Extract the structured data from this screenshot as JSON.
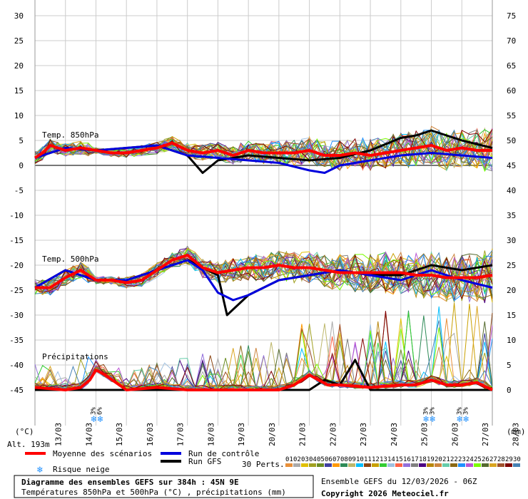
{
  "chart_data": {
    "type": "line",
    "title": "Diagramme des ensembles GEFS sur 384h : 45N 9E",
    "subtitle": "Températures 850hPa et 500hPa (°C) , précipitations (mm)",
    "source": "Ensemble GEFS du 12/03/2026 - 06Z",
    "copyright": "Copyright 2026 Meteociel.fr",
    "left_axis": {
      "unit": "(°C)",
      "min": -45,
      "max": 30,
      "ticks": [
        30,
        25,
        20,
        15,
        10,
        5,
        0,
        -5,
        -10,
        -15,
        -20,
        -25,
        -30,
        -35,
        -40,
        -45
      ]
    },
    "right_axis": {
      "unit": "(mm)",
      "min": 0,
      "max": 75,
      "ticks": [
        75,
        70,
        65,
        60,
        55,
        50,
        45,
        40,
        35,
        30,
        25,
        20,
        15,
        10,
        5,
        0
      ]
    },
    "altitude": "Alt. 193m",
    "dates": [
      "13/03",
      "14/03",
      "15/03",
      "16/03",
      "17/03",
      "18/03",
      "19/03",
      "20/03",
      "21/03",
      "22/03",
      "23/03",
      "24/03",
      "25/03",
      "26/03",
      "27/03",
      "28/03"
    ],
    "labels": {
      "t850": "Temp. 850hPa",
      "t500": "Temp. 500hPa",
      "precip": "Précipitations"
    },
    "legend": {
      "mean": "Moyenne des scénarios",
      "control": "Run de contrôle",
      "gfs": "Run GFS",
      "snow": "Risque neige",
      "perts_label": "30 Perts.",
      "perts": [
        "01",
        "02",
        "03",
        "04",
        "05",
        "06",
        "07",
        "08",
        "09",
        "10",
        "11",
        "12",
        "13",
        "14",
        "15",
        "16",
        "17",
        "18",
        "19",
        "20",
        "21",
        "22",
        "23",
        "24",
        "25",
        "26",
        "27",
        "28",
        "29",
        "30"
      ]
    },
    "snow_marks": [
      {
        "day": 2.0,
        "labels": [
          "3%",
          "6%"
        ]
      },
      {
        "day": 12.9,
        "labels": [
          "3%",
          "3%"
        ]
      },
      {
        "day": 14.0,
        "labels": [
          "3%",
          "3%"
        ]
      }
    ],
    "colors": {
      "mean": "#ff0000",
      "control": "#0000dd",
      "gfs": "#000000",
      "perts": [
        "#e8903a",
        "#aaaaaa",
        "#e0c000",
        "#a0a020",
        "#6b8e23",
        "#4040a0",
        "#ff9900",
        "#2e8b57",
        "#bdb76b",
        "#00bfff",
        "#8b4513",
        "#c8a000",
        "#32cd32",
        "#a0c0e0",
        "#ff6347",
        "#9370db",
        "#808080",
        "#4b0082",
        "#b8860b",
        "#cd853f",
        "#66cdaa",
        "#8b6914",
        "#1e90ff",
        "#ba55d3",
        "#7cfc00",
        "#556b2f",
        "#daa520",
        "#a0522d",
        "#800000",
        "#4682b4"
      ]
    },
    "series": [
      {
        "name": "Moyenne des scénarios",
        "var": "t850",
        "x": [
          0,
          0.25,
          0.5,
          0.75,
          1,
          1.5,
          2,
          2.5,
          3,
          3.5,
          4,
          4.5,
          5,
          5.5,
          6,
          6.5,
          7,
          7.5,
          8,
          8.5,
          9,
          9.5,
          10,
          10.5,
          11,
          11.5,
          12,
          12.5,
          13,
          13.5,
          14,
          14.5,
          15
        ],
        "y": [
          1.5,
          2.5,
          4,
          3.5,
          3,
          3.5,
          3,
          2.5,
          2.5,
          3,
          3.5,
          4.5,
          3,
          2.5,
          3,
          2,
          3,
          2.5,
          2.5,
          2.5,
          3,
          2,
          2,
          2.5,
          2,
          2.5,
          3,
          3.5,
          4,
          3,
          3.5,
          3,
          3
        ]
      },
      {
        "name": "Moyenne des scénarios",
        "var": "t500",
        "x": [
          0,
          0.5,
          1,
          1.5,
          2,
          2.5,
          3,
          3.5,
          4,
          4.5,
          5,
          5.5,
          6,
          6.5,
          7,
          7.5,
          8,
          8.5,
          9,
          9.5,
          10,
          10.5,
          11,
          11.5,
          12,
          12.5,
          13,
          13.5,
          14,
          14.5,
          15
        ],
        "y": [
          -24.5,
          -24.5,
          -22.5,
          -21,
          -23,
          -23,
          -23.5,
          -23,
          -21,
          -19,
          -18,
          -20.5,
          -21.5,
          -21,
          -20.5,
          -20.5,
          -20,
          -20.5,
          -20.5,
          -21,
          -21.5,
          -21.5,
          -21.5,
          -21.5,
          -21.5,
          -22,
          -22,
          -22.5,
          -22.5,
          -22.5,
          -22
        ]
      },
      {
        "name": "Moyenne des scénarios",
        "var": "precip",
        "x": [
          0,
          1,
          1.5,
          1.8,
          2,
          2.3,
          3,
          4,
          5,
          6,
          7,
          8,
          8.5,
          9,
          9.3,
          9.6,
          10,
          11,
          12,
          12.5,
          13,
          13.5,
          14,
          14.5,
          15
        ],
        "y": [
          0.5,
          0,
          0.5,
          2,
          4,
          3,
          0,
          0.5,
          0,
          0,
          0,
          0,
          1,
          3,
          2,
          1,
          1,
          0.5,
          1,
          1,
          2,
          1,
          1,
          1.5,
          0
        ]
      },
      {
        "name": "Run de contrôle",
        "var": "t850",
        "x": [
          0,
          1,
          2,
          3,
          4,
          5,
          6,
          7,
          8,
          9,
          9.5,
          10,
          11,
          12,
          13,
          14,
          15
        ],
        "y": [
          1.5,
          3.5,
          3,
          3.5,
          4,
          2,
          1.5,
          1,
          0.5,
          -1,
          -1.5,
          0,
          1,
          2,
          2.5,
          2,
          1.5
        ]
      },
      {
        "name": "Run de contrôle",
        "var": "t500",
        "x": [
          0,
          1,
          2,
          3,
          4,
          5,
          5.5,
          6,
          6.5,
          7,
          8,
          9,
          10,
          11,
          12,
          13,
          14,
          15
        ],
        "y": [
          -24.5,
          -21,
          -23,
          -23,
          -21,
          -19,
          -21,
          -25.5,
          -27,
          -26,
          -23,
          -22,
          -21,
          -22,
          -23,
          -21,
          -23,
          -24.5
        ]
      },
      {
        "name": "Run GFS",
        "var": "t850",
        "x": [
          0,
          1,
          2,
          3,
          4,
          5,
          5.5,
          6,
          7,
          8,
          9,
          10,
          11,
          12,
          12.5,
          13,
          14,
          15
        ],
        "y": [
          1.5,
          3.5,
          3,
          3.5,
          4,
          2,
          -1.5,
          1,
          2,
          1.5,
          1,
          1.5,
          3,
          5.5,
          6,
          7,
          5,
          3.5
        ]
      },
      {
        "name": "Run GFS",
        "var": "t500",
        "x": [
          0,
          1,
          2,
          3,
          4,
          5,
          6,
          6.3,
          7,
          8,
          9,
          10,
          11,
          12,
          13,
          14,
          15
        ],
        "y": [
          -24.5,
          -21,
          -23,
          -23,
          -21,
          -19,
          -22,
          -30,
          -26,
          -23,
          -22,
          -21,
          -22,
          -22,
          -20,
          -21,
          -20
        ]
      },
      {
        "name": "Run GFS",
        "var": "precip",
        "x": [
          0,
          8,
          9,
          9.5,
          10,
          10.5,
          11,
          12,
          15
        ],
        "y": [
          0,
          0,
          0,
          2,
          1,
          6,
          0,
          0,
          0
        ]
      }
    ],
    "ensemble_members": 30
  }
}
